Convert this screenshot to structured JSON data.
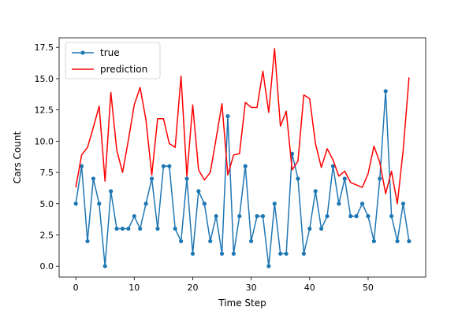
{
  "chart_data": {
    "type": "line",
    "title": "",
    "xlabel": "Time Step",
    "ylabel": "Cars Count",
    "xlim": [
      -2.85,
      59.85
    ],
    "ylim": [
      -0.87,
      18.27
    ],
    "xticks": [
      0,
      10,
      20,
      30,
      40,
      50
    ],
    "yticks": [
      0.0,
      2.5,
      5.0,
      7.5,
      10.0,
      12.5,
      15.0,
      17.5
    ],
    "ytick_labels": [
      "0.0",
      "2.5",
      "5.0",
      "7.5",
      "10.0",
      "12.5",
      "15.0",
      "17.5"
    ],
    "grid": false,
    "legend_position": "upper-left",
    "series": [
      {
        "name": "true",
        "color": "#1f77b4",
        "marker": "circle",
        "values": [
          5,
          8,
          2,
          7,
          5,
          0,
          6,
          3,
          3,
          3,
          4,
          3,
          5,
          7,
          3,
          8,
          8,
          3,
          2,
          7,
          1,
          6,
          5,
          2,
          4,
          1,
          12,
          1,
          4,
          8,
          2,
          4,
          4,
          0,
          5,
          1,
          1,
          9,
          7,
          1,
          3,
          6,
          3,
          4,
          8,
          5,
          7,
          4,
          4,
          5,
          4,
          2,
          7,
          14,
          4,
          2,
          5,
          2
        ]
      },
      {
        "name": "prediction",
        "color": "#ff0000",
        "marker": "none",
        "values": [
          6.3,
          8.9,
          9.5,
          11.1,
          12.8,
          6.8,
          13.9,
          9.3,
          7.5,
          10.1,
          12.9,
          14.3,
          11.7,
          7.3,
          11.8,
          11.8,
          9.8,
          9.5,
          15.2,
          7.2,
          12.9,
          7.7,
          6.9,
          7.5,
          10.2,
          13.0,
          7.3,
          8.9,
          9.0,
          13.1,
          12.7,
          12.7,
          15.6,
          12.3,
          17.4,
          11.2,
          12.4,
          7.7,
          8.4,
          13.7,
          13.4,
          9.8,
          7.9,
          9.4,
          8.5,
          7.2,
          7.6,
          6.7,
          6.5,
          6.3,
          7.4,
          9.6,
          8.3,
          5.8,
          7.6,
          5.0,
          9.3,
          15.1
        ]
      }
    ]
  }
}
